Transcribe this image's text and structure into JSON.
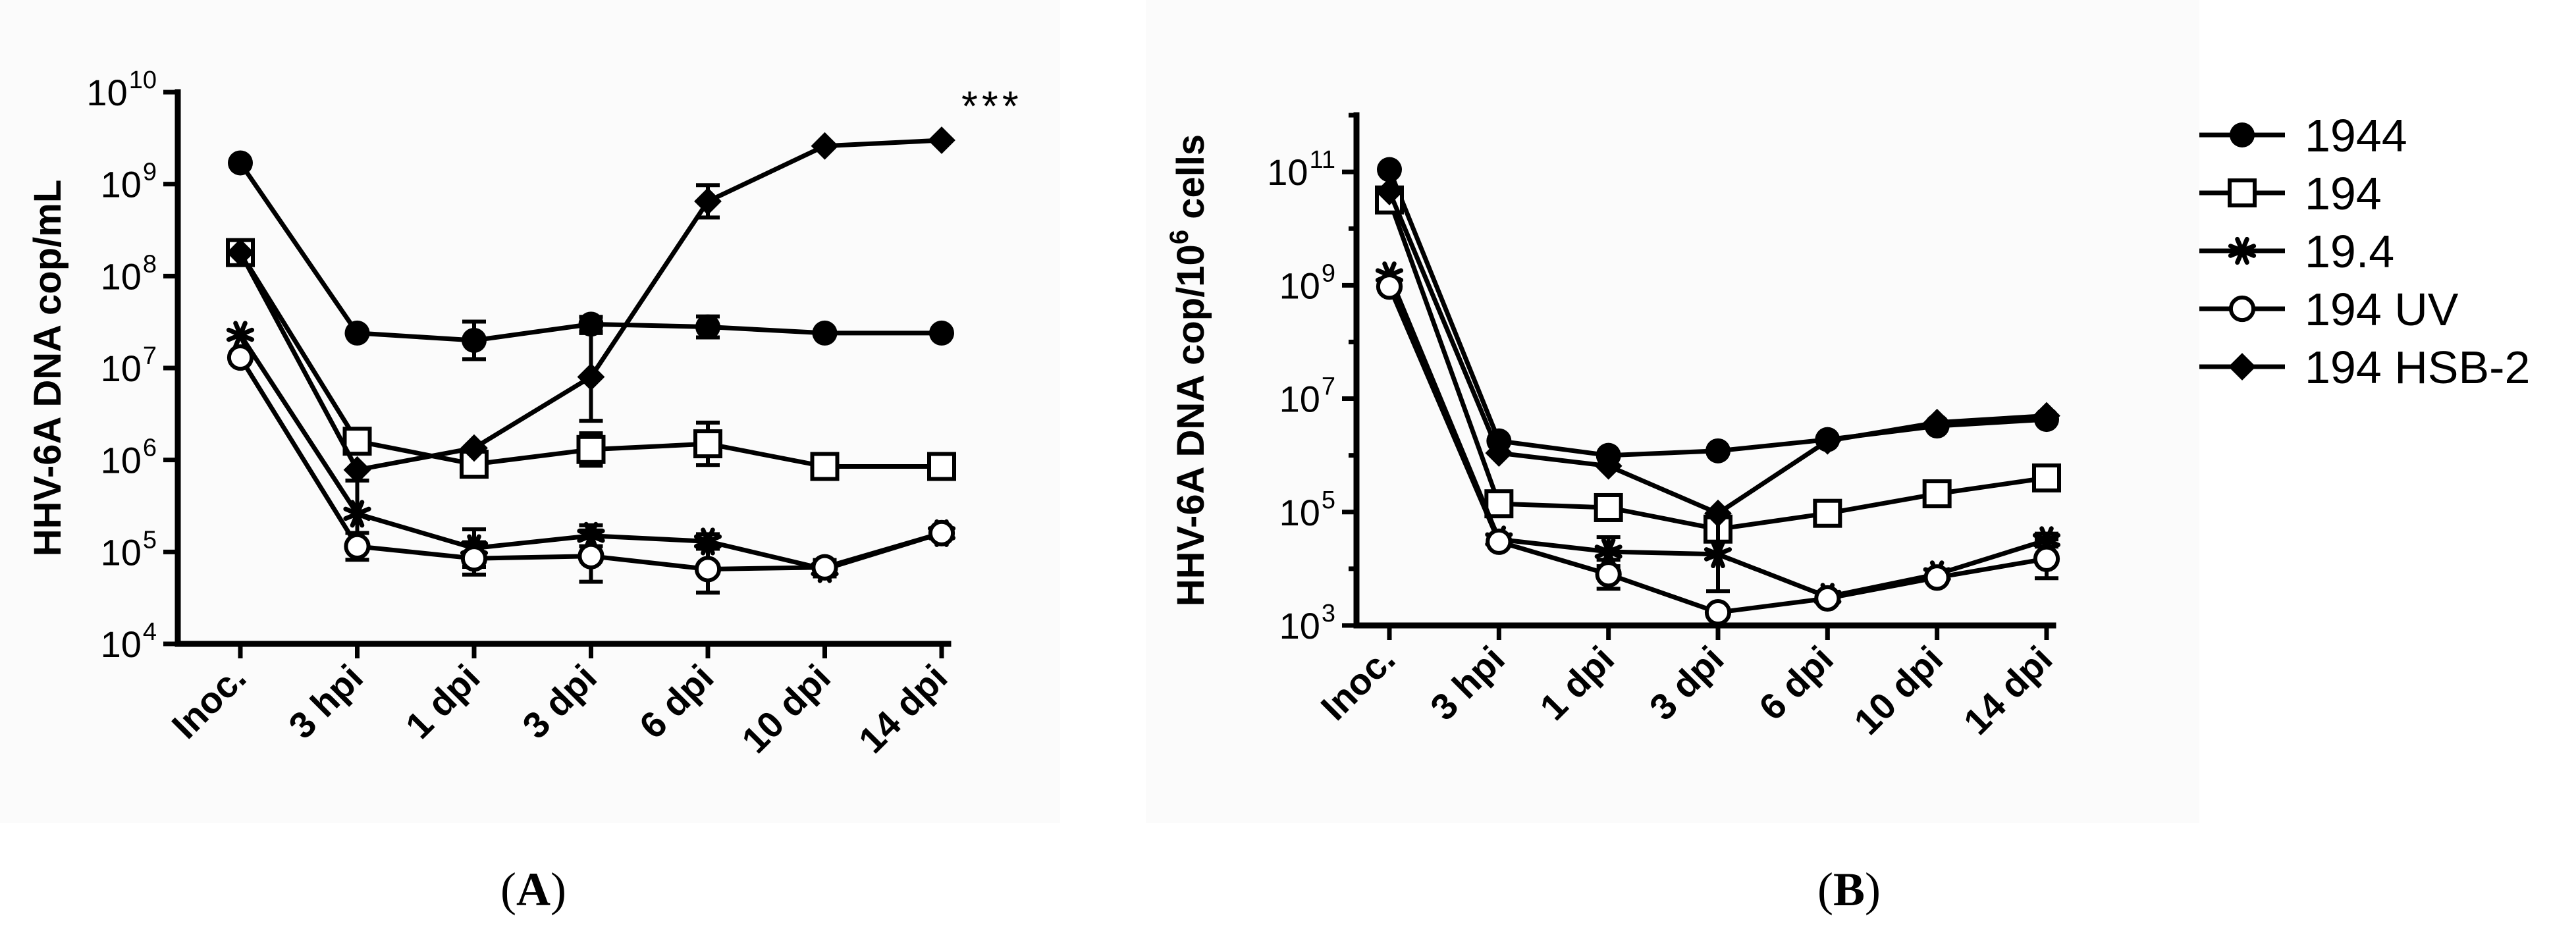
{
  "chart_data": [
    {
      "type": "line",
      "panel": "A",
      "ylabel": "HHV-6A DNA cop/mL",
      "yscale": "log",
      "ylim": [
        10000,
        10000000000
      ],
      "ytick_exponents": [
        "4",
        "5",
        "6",
        "7",
        "8",
        "9",
        "10"
      ],
      "categories": [
        "Inoc.",
        "3 hpi",
        "1 dpi",
        "3 dpi",
        "6 dpi",
        "10 dpi",
        "14 dpi"
      ],
      "annotation": "***",
      "series": [
        {
          "name": "1944",
          "marker": "filled-circle",
          "values": [
            1700000000,
            24000000,
            20000000,
            30000000,
            28000000,
            24000000,
            24000000
          ],
          "err": [
            0,
            0,
            1.6,
            1.2,
            1.3,
            0,
            0
          ]
        },
        {
          "name": "194",
          "marker": "open-square",
          "values": [
            180000000,
            1600000,
            900000,
            1300000,
            1500000,
            850000,
            850000
          ],
          "err": [
            0,
            0,
            0,
            1.5,
            1.7,
            0,
            0
          ]
        },
        {
          "name": "19.4",
          "marker": "asterisk",
          "values": [
            23000000,
            260000,
            110000,
            150000,
            130000,
            65000,
            160000
          ],
          "err": [
            0,
            2.3,
            1.6,
            1.3,
            1.2,
            1.2,
            0
          ]
        },
        {
          "name": "194 UV",
          "marker": "open-circle",
          "values": [
            13000000,
            115000,
            85000,
            90000,
            65000,
            68000,
            160000
          ],
          "err": [
            0,
            1.4,
            1.5,
            1.9,
            1.8,
            1.2,
            0
          ]
        },
        {
          "name": "194 HSB-2",
          "marker": "filled-diamond",
          "values": [
            180000000,
            780000,
            1350000,
            8000000,
            650000000,
            2600000000,
            3000000000
          ],
          "err": [
            0,
            0,
            0,
            3.0,
            1.5,
            0,
            0
          ]
        }
      ]
    },
    {
      "type": "line",
      "panel": "B",
      "ylabel": "HHV-6A DNA cop/10",
      "ylabel_sup": "6",
      "ylabel_suffix": " cells",
      "yscale": "log",
      "ylim": [
        1000,
        1000000000000
      ],
      "ytick_exponents": [
        "3",
        "5",
        "7",
        "9",
        "11"
      ],
      "categories": [
        "Inoc.",
        "3 hpi",
        "1 dpi",
        "3 dpi",
        "6 dpi",
        "10 dpi",
        "14 dpi"
      ],
      "series": [
        {
          "name": "1944",
          "marker": "filled-circle",
          "values": [
            110000000000,
            1800000,
            1000000,
            1200000,
            1900000,
            3300000,
            4300000
          ],
          "err": [
            0,
            0,
            0,
            0,
            0,
            0,
            0
          ]
        },
        {
          "name": "194",
          "marker": "open-square",
          "values": [
            32000000000,
            140000,
            120000,
            50000,
            95000,
            210000,
            400000
          ],
          "err": [
            0,
            0,
            0,
            1.6,
            0,
            0,
            0
          ]
        },
        {
          "name": "19.4",
          "marker": "asterisk",
          "values": [
            1500000000,
            33000,
            20000,
            18000,
            3200,
            8000,
            32000
          ],
          "err": [
            0,
            0,
            1.8,
            4.5,
            1.2,
            1.2,
            1.3
          ]
        },
        {
          "name": "194 UV",
          "marker": "open-circle",
          "values": [
            950000000,
            30000,
            8000,
            1700,
            3000,
            7000,
            15000
          ],
          "err": [
            0,
            0,
            1.8,
            0,
            1.2,
            1.2,
            2.2
          ]
        },
        {
          "name": "194 HSB-2",
          "marker": "filled-diamond",
          "values": [
            45000000000,
            1100000,
            650000,
            95000,
            1800000,
            3800000,
            5000000
          ],
          "err": [
            0,
            0,
            0,
            0,
            0,
            0,
            0
          ]
        }
      ]
    }
  ],
  "legend": [
    {
      "name": "1944",
      "marker": "filled-circle"
    },
    {
      "name": "194",
      "marker": "open-square"
    },
    {
      "name": "19.4",
      "marker": "asterisk"
    },
    {
      "name": "194 UV",
      "marker": "open-circle"
    },
    {
      "name": "194 HSB-2",
      "marker": "filled-diamond"
    }
  ],
  "panel_labels": {
    "a": {
      "open": "(",
      "letter": "A",
      "close": ")"
    },
    "b": {
      "open": "(",
      "letter": "B",
      "close": ")"
    }
  }
}
